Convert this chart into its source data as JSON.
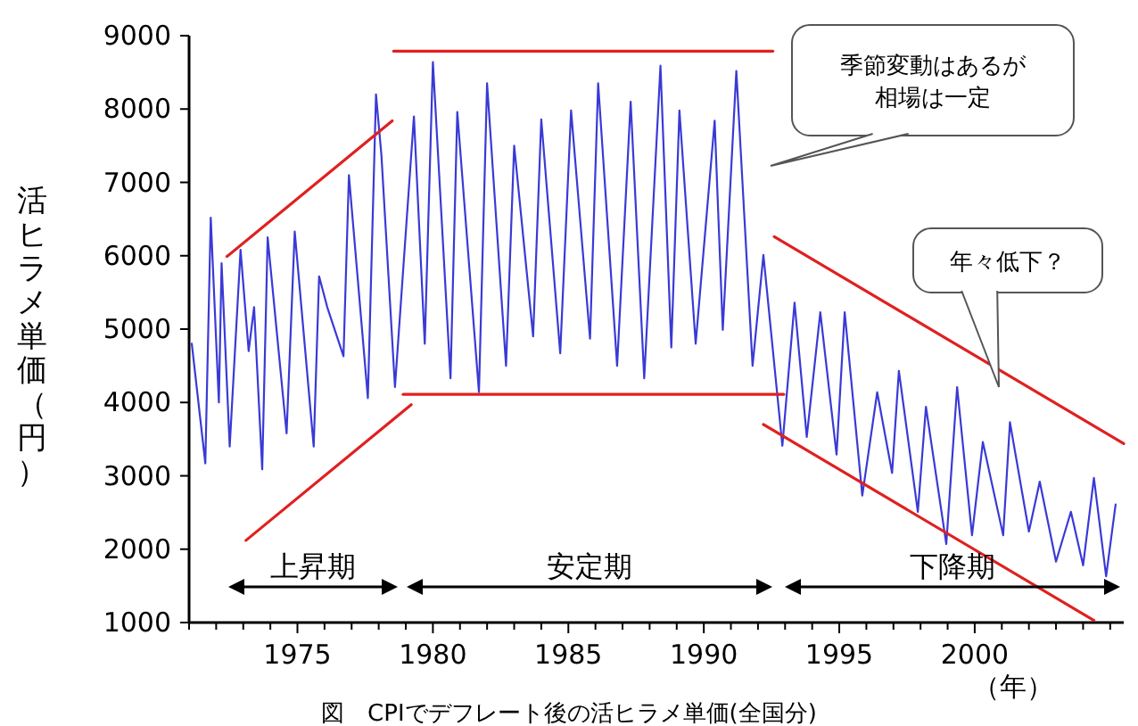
{
  "chart_data": {
    "type": "line",
    "ylabel": "活ヒラメ単価（円）",
    "xlabel": "（年）",
    "xlim": [
      1971,
      2005.5
    ],
    "ylim": [
      1000,
      9000
    ],
    "yticks": [
      1000,
      2000,
      3000,
      4000,
      5000,
      6000,
      7000,
      8000,
      9000
    ],
    "xticks": [
      {
        "value": 1971,
        "label": null
      },
      {
        "value": 1972,
        "label": null
      },
      {
        "value": 1973,
        "label": null
      },
      {
        "value": 1974,
        "label": null
      },
      1975,
      {
        "value": 1976,
        "label": null
      },
      {
        "value": 1977,
        "label": null
      },
      {
        "value": 1978,
        "label": null
      },
      {
        "value": 1979,
        "label": null
      },
      1980,
      {
        "value": 1981,
        "label": null
      },
      {
        "value": 1982,
        "label": null
      },
      {
        "value": 1983,
        "label": null
      },
      {
        "value": 1984,
        "label": null
      },
      1985,
      {
        "value": 1986,
        "label": null
      },
      {
        "value": 1987,
        "label": null
      },
      {
        "value": 1988,
        "label": null
      },
      {
        "value": 1989,
        "label": null
      },
      1990,
      {
        "value": 1991,
        "label": null
      },
      {
        "value": 1992,
        "label": null
      },
      {
        "value": 1993,
        "label": null
      },
      {
        "value": 1994,
        "label": null
      },
      1995,
      {
        "value": 1996,
        "label": null
      },
      {
        "value": 1997,
        "label": null
      },
      {
        "value": 1998,
        "label": null
      },
      {
        "value": 1999,
        "label": null
      },
      2000,
      {
        "value": 2001,
        "label": null
      },
      {
        "value": 2002,
        "label": null
      },
      {
        "value": 2003,
        "label": null
      },
      {
        "value": 2004,
        "label": null
      },
      {
        "value": 2005,
        "label": null
      }
    ],
    "series": [
      {
        "color": "#3a3ad6",
        "x": [
          1971.1,
          1971.6,
          1971.8,
          1972.1,
          1972.2,
          1972.5,
          1972.9,
          1973.2,
          1973.4,
          1973.7,
          1973.9,
          1974.6,
          1974.9,
          1975.6,
          1975.8,
          1976.1,
          1976.7,
          1976.9,
          1977.6,
          1977.9,
          1978.1,
          1978.6,
          1979.3,
          1979.7,
          1980.0,
          1980.65,
          1980.9,
          1981.7,
          1982.0,
          1982.7,
          1983.0,
          1983.7,
          1984.0,
          1984.7,
          1985.1,
          1985.8,
          1986.1,
          1986.8,
          1987.3,
          1987.8,
          1988.4,
          1988.8,
          1989.1,
          1989.7,
          1990.4,
          1990.7,
          1991.2,
          1991.8,
          1992.2,
          1992.9,
          1993.35,
          1993.8,
          1994.3,
          1994.9,
          1995.2,
          1995.85,
          1996.4,
          1996.95,
          1997.2,
          1997.9,
          1998.2,
          1998.95,
          1999.35,
          1999.9,
          2000.3,
          2001.05,
          2001.3,
          2002.0,
          2002.4,
          2003.0,
          2003.55,
          2004.0,
          2004.4,
          2004.85,
          2005.2
        ],
        "values": [
          4800,
          3170,
          6520,
          4000,
          5900,
          3400,
          6080,
          4700,
          5300,
          3090,
          6250,
          3580,
          6330,
          3400,
          5720,
          5300,
          4630,
          7100,
          4060,
          8200,
          7370,
          4210,
          7900,
          4800,
          8640,
          4330,
          7960,
          4140,
          8350,
          4500,
          7500,
          4900,
          7860,
          4670,
          7980,
          4870,
          8350,
          4500,
          8100,
          4330,
          8590,
          4750,
          7980,
          4800,
          7840,
          4990,
          8520,
          4500,
          6010,
          3410,
          5360,
          3530,
          5230,
          3290,
          5230,
          2730,
          4140,
          3040,
          4430,
          2510,
          3940,
          2070,
          4210,
          2190,
          3460,
          2190,
          3730,
          2240,
          2920,
          1830,
          2510,
          1780,
          2970,
          1630,
          2610
        ]
      },
      {
        "type": "line",
        "color": "#e02020",
        "x": [
          1972.4,
          1978.5
        ],
        "values": [
          5990,
          7840
        ]
      },
      {
        "type": "line",
        "color": "#e02020",
        "x": [
          1973.1,
          1979.2
        ],
        "values": [
          2120,
          3970
        ]
      },
      {
        "type": "line",
        "color": "#e02020",
        "x": [
          1978.55,
          1992.55
        ],
        "values": [
          8790,
          8790
        ]
      },
      {
        "type": "line",
        "color": "#e02020",
        "x": [
          1978.9,
          1992.95
        ],
        "values": [
          4110,
          4110
        ]
      },
      {
        "type": "line",
        "color": "#e02020",
        "x": [
          1992.6,
          2005.5
        ],
        "values": [
          6260,
          3440
        ]
      },
      {
        "type": "line",
        "color": "#e02020",
        "x": [
          1992.2,
          2004.4
        ],
        "values": [
          3700,
          1030
        ]
      }
    ],
    "annotations": [
      "上昇期",
      "安定期",
      "下降期",
      "季節変動はあるが相場は一定",
      "年々低下？",
      "図　CPIでデフレート後の活ヒラメ単価(全国分)"
    ]
  }
}
